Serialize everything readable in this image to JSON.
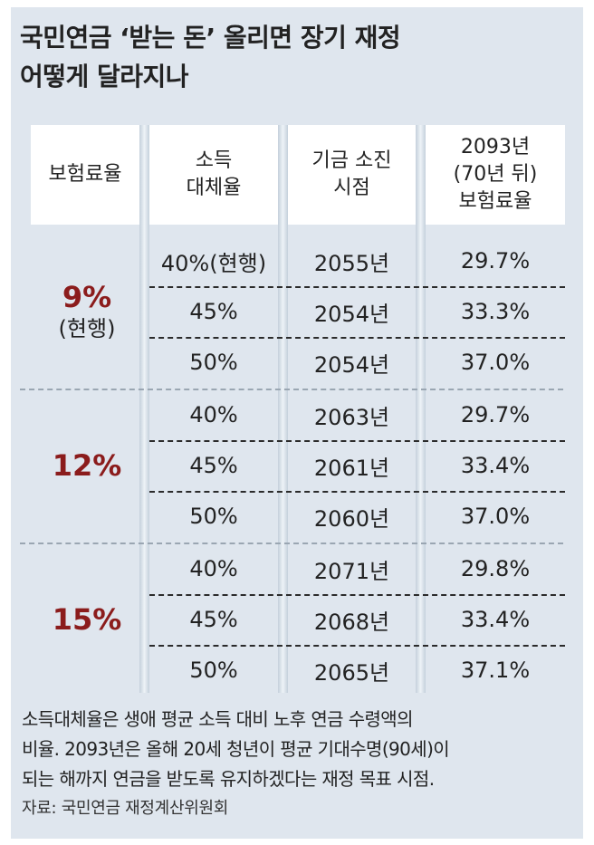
{
  "title": {
    "line1": "국민연금 ‘받는 돈’ 올리면 장기 재정",
    "line2": "어떻게 달라지나"
  },
  "headers": {
    "col1": "보험료율",
    "col2_line1": "소득",
    "col2_line2": "대체율",
    "col3_line1": "기금 소진",
    "col3_line2": "시점",
    "col4_line1": "2093년",
    "col4_line2": "(70년 뒤)",
    "col4_line3": "보험료율"
  },
  "groups": [
    {
      "rate": "9%",
      "rate_note": "(현행)",
      "rows": [
        {
          "replacement": "40%(현행)",
          "depletion": "2055년",
          "rate2093": "29.7%"
        },
        {
          "replacement": "45%",
          "depletion": "2054년",
          "rate2093": "33.3%"
        },
        {
          "replacement": "50%",
          "depletion": "2054년",
          "rate2093": "37.0%"
        }
      ]
    },
    {
      "rate": "12%",
      "rows": [
        {
          "replacement": "40%",
          "depletion": "2063년",
          "rate2093": "29.7%"
        },
        {
          "replacement": "45%",
          "depletion": "2061년",
          "rate2093": "33.4%"
        },
        {
          "replacement": "50%",
          "depletion": "2060년",
          "rate2093": "37.0%"
        }
      ]
    },
    {
      "rate": "15%",
      "rows": [
        {
          "replacement": "40%",
          "depletion": "2071년",
          "rate2093": "29.8%"
        },
        {
          "replacement": "45%",
          "depletion": "2068년",
          "rate2093": "33.4%"
        },
        {
          "replacement": "50%",
          "depletion": "2065년",
          "rate2093": "37.1%"
        }
      ]
    }
  ],
  "note": {
    "line1": "소득대체율은 생애 평균 소득 대비 노후 연금 수령액의",
    "line2": "비율. 2093년은 올해 20세 청년이 평균 기대수명(90세)이",
    "line3": "되는 해까지 연금을 받도록 유지하겠다는 재정 목표 시점."
  },
  "source": "자료: 국민연금 재정계산위원회"
}
